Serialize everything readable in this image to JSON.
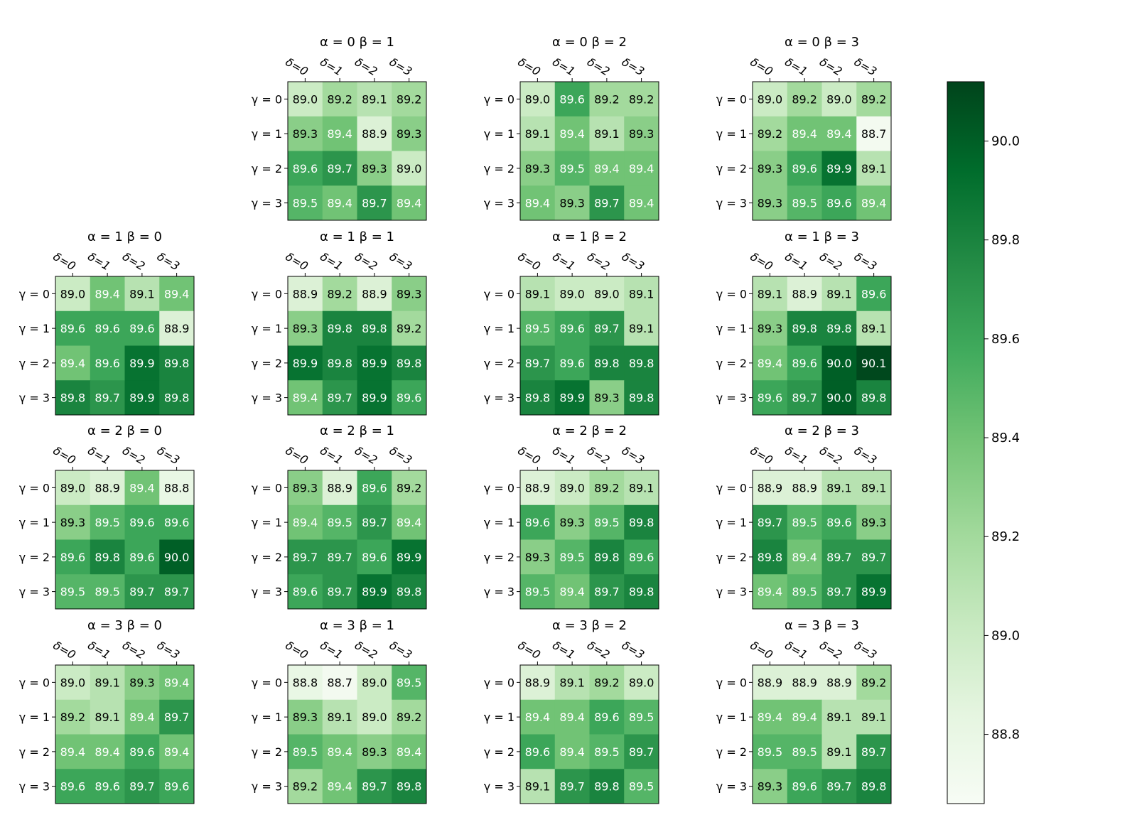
{
  "chart_data": {
    "type": "heatmap",
    "colormap": "Greens",
    "vmin": 88.66,
    "vmax": 90.12,
    "colorbar_ticks": [
      "88.8",
      "89.0",
      "89.2",
      "89.4",
      "89.6",
      "89.8",
      "90.0"
    ],
    "x_tick_labels": [
      "δ=0",
      "δ=1",
      "δ=2",
      "δ=3"
    ],
    "y_tick_labels": [
      "γ = 0",
      "γ = 1",
      "γ = 2",
      "γ = 3"
    ],
    "panels": [
      {
        "title": "α = 0  β = 1",
        "alpha": 0,
        "beta": 1,
        "values": [
          [
            89.0,
            89.2,
            89.1,
            89.2
          ],
          [
            89.3,
            89.4,
            88.9,
            89.3
          ],
          [
            89.6,
            89.7,
            89.3,
            89.0
          ],
          [
            89.5,
            89.4,
            89.7,
            89.4
          ]
        ]
      },
      {
        "title": "α = 0  β = 2",
        "alpha": 0,
        "beta": 2,
        "values": [
          [
            89.0,
            89.6,
            89.2,
            89.2
          ],
          [
            89.1,
            89.4,
            89.1,
            89.3
          ],
          [
            89.3,
            89.5,
            89.4,
            89.4
          ],
          [
            89.4,
            89.3,
            89.7,
            89.4
          ]
        ]
      },
      {
        "title": "α = 0  β = 3",
        "alpha": 0,
        "beta": 3,
        "values": [
          [
            89.0,
            89.2,
            89.0,
            89.2
          ],
          [
            89.2,
            89.4,
            89.4,
            88.7
          ],
          [
            89.3,
            89.6,
            89.9,
            89.1
          ],
          [
            89.3,
            89.5,
            89.6,
            89.4
          ]
        ]
      },
      {
        "title": "α = 1  β = 0",
        "alpha": 1,
        "beta": 0,
        "values": [
          [
            89.0,
            89.4,
            89.1,
            89.4
          ],
          [
            89.6,
            89.6,
            89.6,
            88.9
          ],
          [
            89.4,
            89.6,
            89.9,
            89.8
          ],
          [
            89.8,
            89.7,
            89.9,
            89.8
          ]
        ]
      },
      {
        "title": "α = 1  β = 1",
        "alpha": 1,
        "beta": 1,
        "values": [
          [
            88.9,
            89.2,
            88.9,
            89.3
          ],
          [
            89.3,
            89.8,
            89.8,
            89.2
          ],
          [
            89.9,
            89.8,
            89.9,
            89.8
          ],
          [
            89.4,
            89.7,
            89.9,
            89.6
          ]
        ]
      },
      {
        "title": "α = 1  β = 2",
        "alpha": 1,
        "beta": 2,
        "values": [
          [
            89.1,
            89.0,
            89.0,
            89.1
          ],
          [
            89.5,
            89.6,
            89.7,
            89.1
          ],
          [
            89.7,
            89.6,
            89.8,
            89.8
          ],
          [
            89.8,
            89.9,
            89.3,
            89.8
          ]
        ]
      },
      {
        "title": "α = 1  β = 3",
        "alpha": 1,
        "beta": 3,
        "values": [
          [
            89.1,
            88.9,
            89.1,
            89.6
          ],
          [
            89.3,
            89.8,
            89.8,
            89.1
          ],
          [
            89.4,
            89.6,
            90.0,
            90.1
          ],
          [
            89.6,
            89.7,
            90.0,
            89.8
          ]
        ]
      },
      {
        "title": "α = 2  β = 0",
        "alpha": 2,
        "beta": 0,
        "values": [
          [
            89.0,
            88.9,
            89.4,
            88.8
          ],
          [
            89.3,
            89.5,
            89.6,
            89.6
          ],
          [
            89.6,
            89.8,
            89.6,
            90.0
          ],
          [
            89.5,
            89.5,
            89.7,
            89.7
          ]
        ]
      },
      {
        "title": "α = 2  β = 1",
        "alpha": 2,
        "beta": 1,
        "values": [
          [
            89.3,
            88.9,
            89.6,
            89.2
          ],
          [
            89.4,
            89.5,
            89.7,
            89.4
          ],
          [
            89.7,
            89.7,
            89.6,
            89.9
          ],
          [
            89.6,
            89.7,
            89.9,
            89.8
          ]
        ]
      },
      {
        "title": "α = 2  β = 2",
        "alpha": 2,
        "beta": 2,
        "values": [
          [
            88.9,
            89.0,
            89.2,
            89.1
          ],
          [
            89.6,
            89.3,
            89.5,
            89.8
          ],
          [
            89.3,
            89.5,
            89.8,
            89.6
          ],
          [
            89.5,
            89.4,
            89.7,
            89.8
          ]
        ]
      },
      {
        "title": "α = 2  β = 3",
        "alpha": 2,
        "beta": 3,
        "values": [
          [
            88.9,
            88.9,
            89.1,
            89.1
          ],
          [
            89.7,
            89.5,
            89.6,
            89.3
          ],
          [
            89.8,
            89.4,
            89.7,
            89.7
          ],
          [
            89.4,
            89.5,
            89.7,
            89.9
          ]
        ]
      },
      {
        "title": "α = 3  β = 0",
        "alpha": 3,
        "beta": 0,
        "values": [
          [
            89.0,
            89.1,
            89.3,
            89.4
          ],
          [
            89.2,
            89.1,
            89.4,
            89.7
          ],
          [
            89.4,
            89.4,
            89.6,
            89.4
          ],
          [
            89.6,
            89.6,
            89.7,
            89.6
          ]
        ]
      },
      {
        "title": "α = 3  β = 1",
        "alpha": 3,
        "beta": 1,
        "values": [
          [
            88.8,
            88.7,
            89.0,
            89.5
          ],
          [
            89.3,
            89.1,
            89.0,
            89.2
          ],
          [
            89.5,
            89.4,
            89.3,
            89.4
          ],
          [
            89.2,
            89.4,
            89.7,
            89.8
          ]
        ]
      },
      {
        "title": "α = 3  β = 2",
        "alpha": 3,
        "beta": 2,
        "values": [
          [
            88.9,
            89.1,
            89.2,
            89.0
          ],
          [
            89.4,
            89.4,
            89.6,
            89.5
          ],
          [
            89.6,
            89.4,
            89.5,
            89.7
          ],
          [
            89.1,
            89.7,
            89.8,
            89.5
          ]
        ]
      },
      {
        "title": "α = 3  β = 3",
        "alpha": 3,
        "beta": 3,
        "values": [
          [
            88.9,
            88.9,
            88.9,
            89.2
          ],
          [
            89.4,
            89.4,
            89.1,
            89.1
          ],
          [
            89.5,
            89.5,
            89.1,
            89.7
          ],
          [
            89.3,
            89.6,
            89.7,
            89.8
          ]
        ]
      }
    ]
  }
}
